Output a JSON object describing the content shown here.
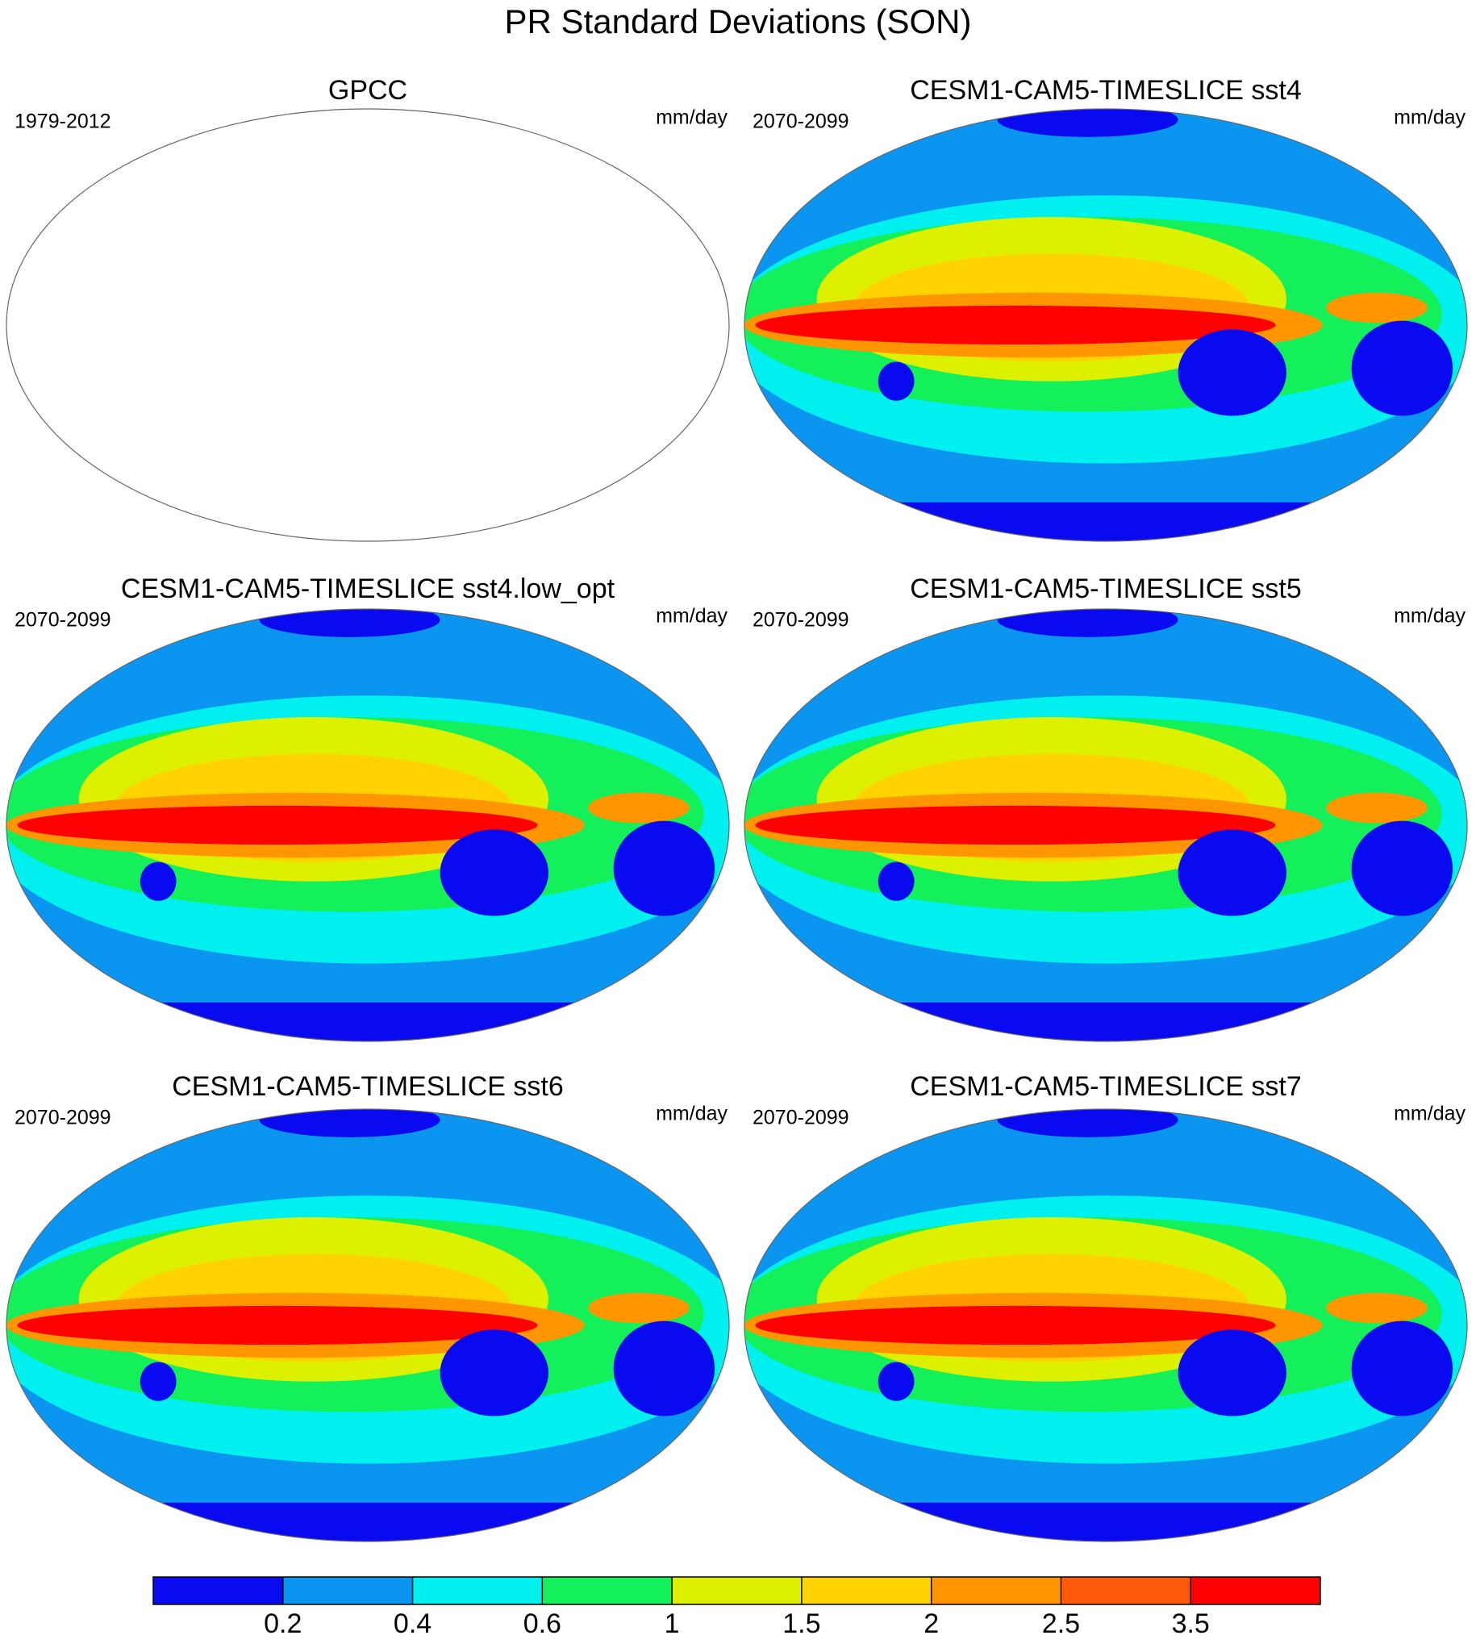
{
  "title": "PR Standard Deviations (SON)",
  "panels": [
    {
      "title": "GPCC",
      "period": "1979-2012",
      "units": "mm/day",
      "filled": false
    },
    {
      "title": "CESM1-CAM5-TIMESLICE sst4",
      "period": "2070-2099",
      "units": "mm/day",
      "filled": true
    },
    {
      "title": "CESM1-CAM5-TIMESLICE sst4.low_opt",
      "period": "2070-2099",
      "units": "mm/day",
      "filled": true
    },
    {
      "title": "CESM1-CAM5-TIMESLICE sst5",
      "period": "2070-2099",
      "units": "mm/day",
      "filled": true
    },
    {
      "title": "CESM1-CAM5-TIMESLICE sst6",
      "period": "2070-2099",
      "units": "mm/day",
      "filled": true
    },
    {
      "title": "CESM1-CAM5-TIMESLICE sst7",
      "period": "2070-2099",
      "units": "mm/day",
      "filled": true
    }
  ],
  "colorbar": {
    "colors": [
      "#0a0af0",
      "#0a96f0",
      "#00f0f0",
      "#14f05a",
      "#dcf000",
      "#ffd200",
      "#ff9600",
      "#ff5a0a",
      "#ff0000"
    ],
    "levels": [
      0.2,
      0.4,
      0.6,
      1,
      1.5,
      2,
      2.5,
      3.5
    ]
  }
}
